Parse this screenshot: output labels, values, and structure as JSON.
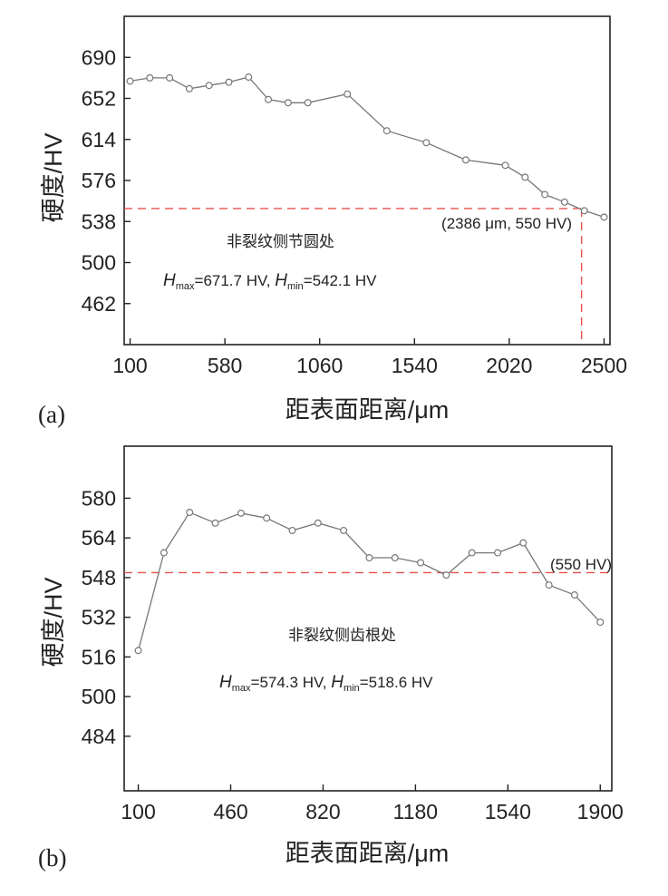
{
  "chart_data": [
    {
      "type": "line",
      "panel_label": "(a)",
      "xlabel": "距表面距离/μm",
      "ylabel": "硬度/HV",
      "xlim": [
        70,
        2530
      ],
      "ylim": [
        424,
        728
      ],
      "xticks": [
        100,
        580,
        1060,
        1540,
        2020,
        2500
      ],
      "yticks": [
        462,
        500,
        538,
        576,
        614,
        652,
        690
      ],
      "series": [
        {
          "x": [
            100,
            200,
            300,
            400,
            500,
            600,
            700,
            800,
            900,
            1000,
            1200,
            1400,
            1600,
            1800,
            2000,
            2100,
            2200,
            2300,
            2400,
            2500
          ],
          "y": [
            668,
            671,
            671,
            661,
            664,
            667,
            671.7,
            651,
            648,
            648,
            656,
            622,
            611,
            595,
            590,
            579,
            563,
            556,
            548,
            542.1
          ],
          "color": "#777777"
        }
      ],
      "reference": {
        "x": 2386,
        "y": 550,
        "color": "#e8504e",
        "label": "(2386 μm, 550 HV)",
        "h_from_x": 70
      },
      "annotations": {
        "location": "非裂纹侧节圆处",
        "hmax_symbol": "H",
        "hmax_sub": "max",
        "hmax_value": "=671.7 HV, ",
        "hmin_symbol": "H",
        "hmin_sub": "min",
        "hmin_value": "=542.1 HV"
      },
      "grid": false
    },
    {
      "type": "line",
      "panel_label": "(b)",
      "xlabel": "距表面距离/μm",
      "ylabel": "硬度/HV",
      "xlim": [
        45,
        1945
      ],
      "ylim": [
        462,
        601
      ],
      "xticks": [
        100,
        460,
        820,
        1180,
        1540,
        1900
      ],
      "yticks": [
        484,
        500,
        516,
        532,
        548,
        564,
        580
      ],
      "series": [
        {
          "x": [
            100,
            200,
            300,
            400,
            500,
            600,
            700,
            800,
            900,
            1000,
            1100,
            1200,
            1300,
            1400,
            1500,
            1600,
            1700,
            1800,
            1900
          ],
          "y": [
            518.6,
            558,
            574.3,
            570,
            574,
            572,
            567,
            570,
            567,
            556,
            556,
            554,
            549,
            558,
            558,
            562,
            545,
            541,
            530
          ],
          "color": "#777777"
        }
      ],
      "reference": {
        "y": 550,
        "color": "#e8504e",
        "label": "(550 HV)",
        "h_from_x": 45
      },
      "annotations": {
        "location": "非裂纹侧齿根处",
        "hmax_symbol": "H",
        "hmax_sub": "max",
        "hmax_value": "=574.3 HV, ",
        "hmin_symbol": "H",
        "hmin_sub": "min",
        "hmin_value": "=518.6 HV"
      },
      "grid": false
    }
  ]
}
